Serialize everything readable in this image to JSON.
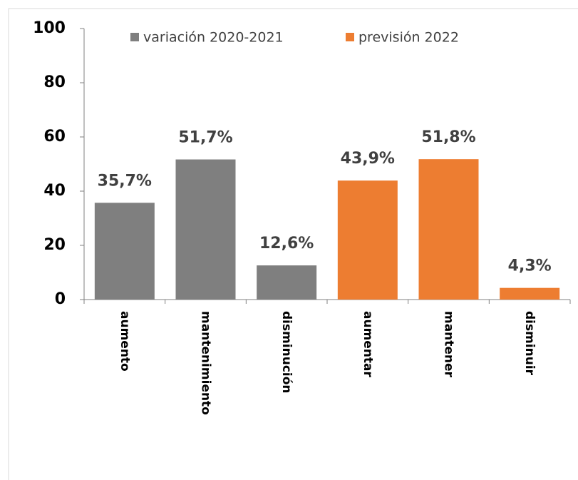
{
  "chart_data": {
    "type": "bar",
    "categories": [
      "aumento",
      "mantenimiento",
      "disminución",
      "aumentar",
      "mantener",
      "disminuir"
    ],
    "series": [
      {
        "name": "variación 2020-2021",
        "color": "#7f7f7f",
        "values": [
          35.7,
          51.7,
          12.6,
          null,
          null,
          null
        ],
        "value_labels": [
          "35,7%",
          "51,7%",
          "12,6%",
          null,
          null,
          null
        ]
      },
      {
        "name": "previsión 2022",
        "color": "#ed7d31",
        "values": [
          null,
          null,
          null,
          43.9,
          51.8,
          4.3
        ],
        "value_labels": [
          null,
          null,
          null,
          "43,9%",
          "51,8%",
          "4,3%"
        ]
      }
    ],
    "ylim": [
      0,
      100
    ],
    "yticks": [
      0,
      20,
      40,
      60,
      80,
      100
    ],
    "grid": false,
    "legend": "top"
  }
}
